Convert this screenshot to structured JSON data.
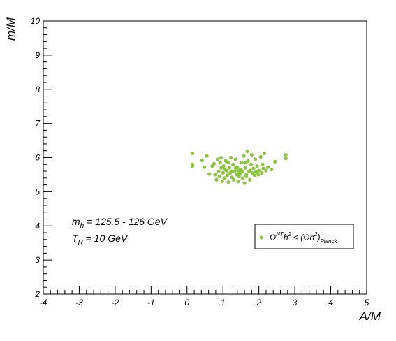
{
  "chart_data": {
    "type": "scatter",
    "xlabel": "A/M",
    "ylabel": "m/M",
    "xlim": [
      -4,
      5
    ],
    "ylim": [
      2,
      10
    ],
    "x_ticks": [
      "-4",
      "-3",
      "-2",
      "-1",
      "0",
      "1",
      "2",
      "3",
      "4",
      "5"
    ],
    "y_ticks": [
      "2",
      "3",
      "4",
      "5",
      "6",
      "7",
      "8",
      "9",
      "10"
    ],
    "grid": false,
    "legend_position": "bottom-right",
    "point_color": "#8cc63f",
    "annotations": {
      "line1": {
        "main": "m",
        "sub": "h",
        "rest": " = 125.5 - 126 GeV"
      },
      "line2": {
        "main": "T",
        "sub": "R",
        "rest": " = 10 GeV"
      }
    },
    "legend": {
      "omega": "Ω",
      "nt": "NT",
      "h": "h",
      "two": "2",
      "leq": " ≤ (Ωh",
      "close": ")",
      "planck": "Planck"
    },
    "series": [
      {
        "points": [
          [
            0.15,
            6.12
          ],
          [
            0.15,
            5.8
          ],
          [
            0.15,
            5.75
          ],
          [
            0.42,
            5.92
          ],
          [
            0.48,
            5.72
          ],
          [
            0.55,
            6.05
          ],
          [
            0.62,
            5.52
          ],
          [
            0.7,
            5.75
          ],
          [
            0.75,
            5.82
          ],
          [
            0.78,
            5.5
          ],
          [
            0.82,
            5.35
          ],
          [
            0.85,
            5.95
          ],
          [
            0.88,
            5.6
          ],
          [
            0.9,
            5.45
          ],
          [
            0.92,
            5.85
          ],
          [
            0.95,
            6.0
          ],
          [
            0.98,
            5.3
          ],
          [
            1.0,
            5.55
          ],
          [
            1.02,
            5.75
          ],
          [
            1.05,
            5.4
          ],
          [
            1.08,
            5.9
          ],
          [
            1.1,
            5.62
          ],
          [
            1.12,
            5.48
          ],
          [
            1.15,
            5.28
          ],
          [
            1.18,
            5.7
          ],
          [
            1.2,
            5.55
          ],
          [
            1.22,
            6.0
          ],
          [
            1.25,
            5.42
          ],
          [
            1.28,
            5.8
          ],
          [
            1.3,
            5.35
          ],
          [
            1.32,
            5.6
          ],
          [
            1.35,
            5.95
          ],
          [
            1.38,
            5.5
          ],
          [
            1.4,
            5.72
          ],
          [
            1.42,
            5.3
          ],
          [
            1.45,
            5.45
          ],
          [
            1.48,
            5.65
          ],
          [
            1.5,
            5.55
          ],
          [
            1.52,
            5.85
          ],
          [
            1.55,
            5.4
          ],
          [
            1.58,
            6.05
          ],
          [
            1.6,
            5.25
          ],
          [
            1.62,
            5.7
          ],
          [
            1.65,
            5.5
          ],
          [
            1.68,
            6.18
          ],
          [
            1.7,
            5.9
          ],
          [
            1.72,
            5.6
          ],
          [
            1.75,
            5.35
          ],
          [
            1.78,
            5.8
          ],
          [
            1.8,
            6.08
          ],
          [
            1.82,
            5.55
          ],
          [
            1.85,
            5.68
          ],
          [
            1.88,
            5.48
          ],
          [
            1.9,
            5.95
          ],
          [
            1.92,
            5.58
          ],
          [
            1.95,
            5.75
          ],
          [
            1.98,
            5.5
          ],
          [
            2.0,
            5.62
          ],
          [
            2.05,
            6.02
          ],
          [
            2.08,
            5.55
          ],
          [
            2.1,
            5.8
          ],
          [
            2.12,
            5.68
          ],
          [
            2.15,
            6.12
          ],
          [
            2.2,
            5.62
          ],
          [
            2.25,
            5.72
          ],
          [
            2.35,
            5.65
          ],
          [
            2.45,
            5.88
          ],
          [
            2.75,
            6.08
          ],
          [
            2.75,
            5.98
          ],
          [
            1.05,
            5.65
          ],
          [
            1.15,
            5.85
          ],
          [
            1.25,
            5.6
          ],
          [
            1.35,
            5.7
          ],
          [
            1.45,
            5.55
          ],
          [
            1.55,
            5.6
          ],
          [
            1.65,
            5.45
          ],
          [
            1.75,
            5.62
          ],
          [
            0.95,
            5.7
          ],
          [
            1.42,
            5.62
          ],
          [
            1.62,
            5.85
          ]
        ]
      }
    ]
  }
}
